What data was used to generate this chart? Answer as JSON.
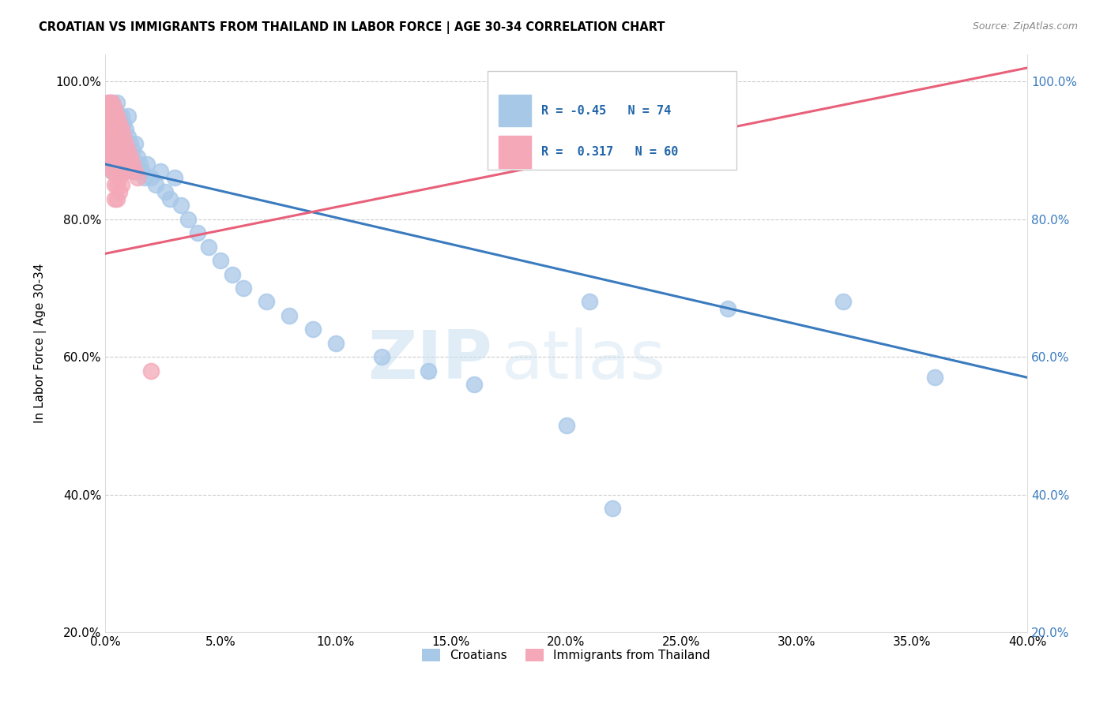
{
  "title": "CROATIAN VS IMMIGRANTS FROM THAILAND IN LABOR FORCE | AGE 30-34 CORRELATION CHART",
  "source": "Source: ZipAtlas.com",
  "ylabel": "In Labor Force | Age 30-34",
  "xlim": [
    0.0,
    0.4
  ],
  "ylim": [
    0.2,
    1.04
  ],
  "blue_R": -0.45,
  "blue_N": 74,
  "pink_R": 0.317,
  "pink_N": 60,
  "blue_color": "#a8c8e8",
  "pink_color": "#f4a8b8",
  "blue_line_color": "#3a7bbf",
  "pink_line_color": "#e8607a",
  "watermark_zip": "ZIP",
  "watermark_atlas": "atlas",
  "legend_label_blue": "Croatians",
  "legend_label_pink": "Immigrants from Thailand",
  "blue_x": [
    0.001,
    0.001,
    0.002,
    0.002,
    0.002,
    0.002,
    0.003,
    0.003,
    0.003,
    0.003,
    0.003,
    0.003,
    0.004,
    0.004,
    0.004,
    0.004,
    0.004,
    0.005,
    0.005,
    0.005,
    0.005,
    0.005,
    0.005,
    0.006,
    0.006,
    0.006,
    0.006,
    0.007,
    0.007,
    0.007,
    0.007,
    0.008,
    0.008,
    0.008,
    0.009,
    0.009,
    0.01,
    0.01,
    0.01,
    0.011,
    0.012,
    0.012,
    0.013,
    0.014,
    0.015,
    0.016,
    0.017,
    0.018,
    0.02,
    0.022,
    0.024,
    0.026,
    0.028,
    0.03,
    0.033,
    0.036,
    0.04,
    0.045,
    0.05,
    0.055,
    0.06,
    0.07,
    0.08,
    0.09,
    0.1,
    0.12,
    0.14,
    0.16,
    0.2,
    0.21,
    0.22,
    0.27,
    0.32,
    0.36
  ],
  "blue_y": [
    0.95,
    0.92,
    0.97,
    0.95,
    0.93,
    0.9,
    0.97,
    0.95,
    0.93,
    0.91,
    0.89,
    0.87,
    0.96,
    0.94,
    0.92,
    0.9,
    0.88,
    0.97,
    0.95,
    0.93,
    0.91,
    0.89,
    0.87,
    0.95,
    0.93,
    0.91,
    0.88,
    0.95,
    0.93,
    0.9,
    0.87,
    0.94,
    0.91,
    0.88,
    0.93,
    0.9,
    0.95,
    0.92,
    0.88,
    0.91,
    0.9,
    0.87,
    0.91,
    0.89,
    0.88,
    0.87,
    0.86,
    0.88,
    0.86,
    0.85,
    0.87,
    0.84,
    0.83,
    0.86,
    0.82,
    0.8,
    0.78,
    0.76,
    0.74,
    0.72,
    0.7,
    0.68,
    0.66,
    0.64,
    0.62,
    0.6,
    0.58,
    0.56,
    0.5,
    0.68,
    0.38,
    0.67,
    0.68,
    0.57
  ],
  "pink_x": [
    0.001,
    0.001,
    0.001,
    0.001,
    0.002,
    0.002,
    0.002,
    0.002,
    0.002,
    0.002,
    0.002,
    0.002,
    0.002,
    0.002,
    0.003,
    0.003,
    0.003,
    0.003,
    0.003,
    0.003,
    0.003,
    0.004,
    0.004,
    0.004,
    0.004,
    0.004,
    0.004,
    0.004,
    0.004,
    0.005,
    0.005,
    0.005,
    0.005,
    0.005,
    0.005,
    0.005,
    0.006,
    0.006,
    0.006,
    0.006,
    0.006,
    0.006,
    0.007,
    0.007,
    0.007,
    0.007,
    0.007,
    0.008,
    0.008,
    0.008,
    0.009,
    0.009,
    0.009,
    0.01,
    0.01,
    0.011,
    0.012,
    0.013,
    0.014,
    0.02
  ],
  "pink_y": [
    0.97,
    0.96,
    0.95,
    0.94,
    0.97,
    0.96,
    0.95,
    0.94,
    0.93,
    0.92,
    0.91,
    0.9,
    0.89,
    0.88,
    0.97,
    0.96,
    0.95,
    0.93,
    0.91,
    0.89,
    0.87,
    0.96,
    0.95,
    0.93,
    0.91,
    0.89,
    0.87,
    0.85,
    0.83,
    0.95,
    0.93,
    0.91,
    0.89,
    0.87,
    0.85,
    0.83,
    0.94,
    0.92,
    0.9,
    0.88,
    0.86,
    0.84,
    0.93,
    0.91,
    0.89,
    0.87,
    0.85,
    0.92,
    0.9,
    0.88,
    0.91,
    0.89,
    0.87,
    0.9,
    0.88,
    0.89,
    0.88,
    0.87,
    0.86,
    0.58
  ],
  "blue_trendline": [
    0.0,
    0.4,
    0.88,
    0.57
  ],
  "pink_trendline": [
    0.0,
    0.4,
    0.75,
    1.02
  ]
}
